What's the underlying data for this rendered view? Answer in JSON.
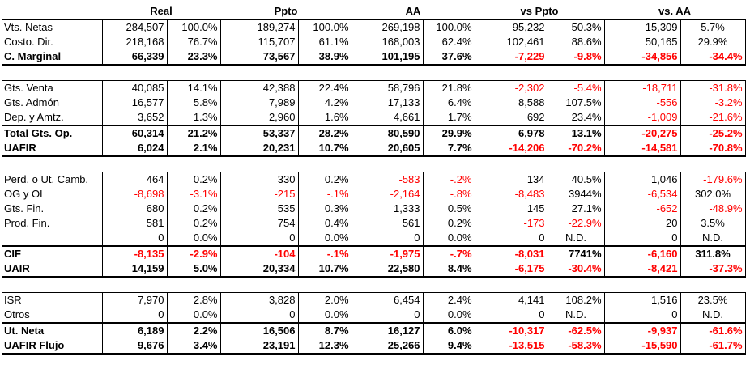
{
  "headers": [
    "Real",
    "Ppto",
    "AA",
    "vs Ppto",
    "vs. AA"
  ],
  "sections": [
    [
      {
        "label": "Vts. Netas",
        "bold": false,
        "v": [
          "284,507",
          "100.0%",
          "189,274",
          "100.0%",
          "269,198",
          "100.0%",
          "95,232",
          "50.3%",
          "15,309",
          "5.7%"
        ]
      },
      {
        "label": "Costo. Dir.",
        "bold": false,
        "v": [
          "218,168",
          "76.7%",
          "115,707",
          "61.1%",
          "168,003",
          "62.4%",
          "102,461",
          "88.6%",
          "50,165",
          "29.9%"
        ]
      },
      {
        "label": "C. Marginal",
        "bold": true,
        "v": [
          "66,339",
          "23.3%",
          "73,567",
          "38.9%",
          "101,195",
          "37.6%",
          "-7,229",
          "-9.8%",
          "-34,856",
          "-34.4%"
        ]
      }
    ],
    [
      {
        "label": "Gts. Venta",
        "bold": false,
        "v": [
          "40,085",
          "14.1%",
          "42,388",
          "22.4%",
          "58,796",
          "21.8%",
          "-2,302",
          "-5.4%",
          "-18,711",
          "-31.8%"
        ]
      },
      {
        "label": "Gts. Admón",
        "bold": false,
        "v": [
          "16,577",
          "5.8%",
          "7,989",
          "4.2%",
          "17,133",
          "6.4%",
          "8,588",
          "107.5%",
          "-556",
          "-3.2%"
        ]
      },
      {
        "label": "Dep. y Amtz.",
        "bold": false,
        "v": [
          "3,652",
          "1.3%",
          "2,960",
          "1.6%",
          "4,661",
          "1.7%",
          "692",
          "23.4%",
          "-1,009",
          "-21.6%"
        ]
      },
      {
        "label": "Total Gts. Op.",
        "bold": true,
        "v": [
          "60,314",
          "21.2%",
          "53,337",
          "28.2%",
          "80,590",
          "29.9%",
          "6,978",
          "13.1%",
          "-20,275",
          "-25.2%"
        ]
      },
      {
        "label": "UAFIR",
        "bold": true,
        "v": [
          "6,024",
          "2.1%",
          "20,231",
          "10.7%",
          "20,605",
          "7.7%",
          "-14,206",
          "-70.2%",
          "-14,581",
          "-70.8%"
        ]
      }
    ],
    [
      {
        "label": "Perd. o Ut. Camb.",
        "bold": false,
        "v": [
          "464",
          "0.2%",
          "330",
          "0.2%",
          "-583",
          "-.2%",
          "134",
          "40.5%",
          "1,046",
          "-179.6%"
        ]
      },
      {
        "label": "OG y OI",
        "bold": false,
        "v": [
          "-8,698",
          "-3.1%",
          "-215",
          "-.1%",
          "-2,164",
          "-.8%",
          "-8,483",
          "3944%",
          "-6,534",
          "302.0%"
        ]
      },
      {
        "label": "Gts. Fin.",
        "bold": false,
        "v": [
          "680",
          "0.2%",
          "535",
          "0.3%",
          "1,333",
          "0.5%",
          "145",
          "27.1%",
          "-652",
          "-48.9%"
        ]
      },
      {
        "label": "Prod. Fin.",
        "bold": false,
        "v": [
          "581",
          "0.2%",
          "754",
          "0.4%",
          "561",
          "0.2%",
          "-173",
          "-22.9%",
          "20",
          "3.5%"
        ]
      },
      {
        "label": "",
        "bold": false,
        "v": [
          "0",
          "0.0%",
          "0",
          "0.0%",
          "0",
          "0.0%",
          "0",
          "N.D.",
          "0",
          "N.D."
        ]
      },
      {
        "label": "CIF",
        "bold": true,
        "v": [
          "-8,135",
          "-2.9%",
          "-104",
          "-.1%",
          "-1,975",
          "-.7%",
          "-8,031",
          "7741%",
          "-6,160",
          "311.8%"
        ]
      },
      {
        "label": "UAIR",
        "bold": true,
        "v": [
          "14,159",
          "5.0%",
          "20,334",
          "10.7%",
          "22,580",
          "8.4%",
          "-6,175",
          "-30.4%",
          "-8,421",
          "-37.3%"
        ]
      }
    ],
    [
      {
        "label": "ISR",
        "bold": false,
        "v": [
          "7,970",
          "2.8%",
          "3,828",
          "2.0%",
          "6,454",
          "2.4%",
          "4,141",
          "108.2%",
          "1,516",
          "23.5%"
        ]
      },
      {
        "label": "Otros",
        "bold": false,
        "v": [
          "0",
          "0.0%",
          "0",
          "0.0%",
          "0",
          "0.0%",
          "0",
          "N.D.",
          "0",
          "N.D."
        ]
      },
      {
        "label": "Ut. Neta",
        "bold": true,
        "v": [
          "6,189",
          "2.2%",
          "16,506",
          "8.7%",
          "16,127",
          "6.0%",
          "-10,317",
          "-62.5%",
          "-9,937",
          "-61.6%"
        ]
      },
      {
        "label": "UAFIR Flujo",
        "bold": true,
        "v": [
          "9,676",
          "3.4%",
          "23,191",
          "12.3%",
          "25,266",
          "9.4%",
          "-13,515",
          "-58.3%",
          "-15,590",
          "-61.7%"
        ]
      }
    ]
  ],
  "colors": {
    "negative": "#ff0000",
    "text": "#000000",
    "background": "#ffffff"
  }
}
